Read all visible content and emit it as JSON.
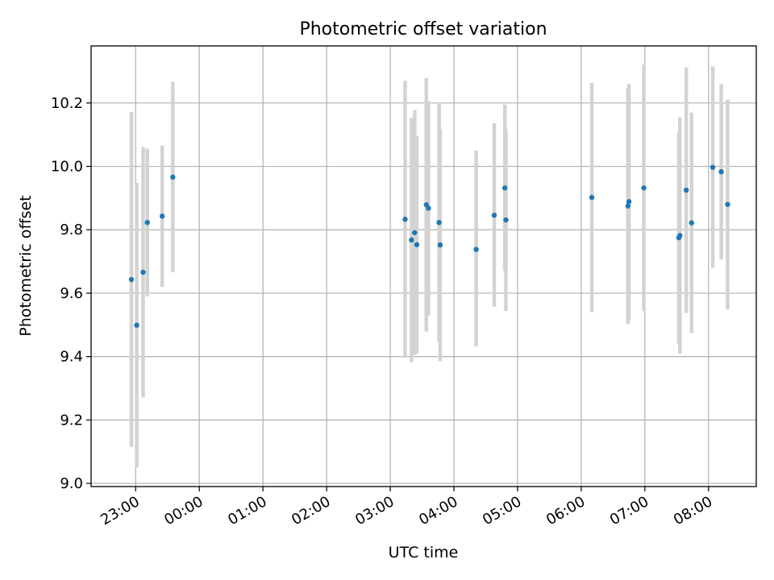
{
  "chart_data": {
    "type": "scatter",
    "title": "Photometric offset variation",
    "xlabel": "UTC time",
    "ylabel": "Photometric offset",
    "x_axis_type": "time",
    "xlim": [
      "2023-01-01T22:18",
      "2023-01-02T08:45"
    ],
    "ylim": [
      8.99,
      10.38
    ],
    "x_ticks": [
      {
        "time": "2023-01-01T23:00",
        "label": "23:00"
      },
      {
        "time": "2023-01-02T00:00",
        "label": "00:00"
      },
      {
        "time": "2023-01-02T01:00",
        "label": "01:00"
      },
      {
        "time": "2023-01-02T02:00",
        "label": "02:00"
      },
      {
        "time": "2023-01-02T03:00",
        "label": "03:00"
      },
      {
        "time": "2023-01-02T04:00",
        "label": "04:00"
      },
      {
        "time": "2023-01-02T05:00",
        "label": "05:00"
      },
      {
        "time": "2023-01-02T06:00",
        "label": "06:00"
      },
      {
        "time": "2023-01-02T07:00",
        "label": "07:00"
      },
      {
        "time": "2023-01-02T08:00",
        "label": "08:00"
      }
    ],
    "y_ticks": [
      {
        "value": 9.0,
        "label": "9.0"
      },
      {
        "value": 9.2,
        "label": "9.2"
      },
      {
        "value": 9.4,
        "label": "9.4"
      },
      {
        "value": 9.6,
        "label": "9.6"
      },
      {
        "value": 9.8,
        "label": "9.8"
      },
      {
        "value": 10.0,
        "label": "10.0"
      },
      {
        "value": 10.2,
        "label": "10.2"
      }
    ],
    "grid": true,
    "point_color": "#1f77b4",
    "errorbar_color": "#d3d3d3",
    "points": [
      {
        "time": "2023-01-01T22:56",
        "y": 9.643,
        "ylow": 9.115,
        "yhigh": 10.172
      },
      {
        "time": "2023-01-01T23:01",
        "y": 9.499,
        "ylow": 9.05,
        "yhigh": 9.948
      },
      {
        "time": "2023-01-01T23:07",
        "y": 9.666,
        "ylow": 9.271,
        "yhigh": 10.061
      },
      {
        "time": "2023-01-01T23:11",
        "y": 9.823,
        "ylow": 9.59,
        "yhigh": 10.056
      },
      {
        "time": "2023-01-01T23:25",
        "y": 9.843,
        "ylow": 9.62,
        "yhigh": 10.066
      },
      {
        "time": "2023-01-01T23:35",
        "y": 9.966,
        "ylow": 9.666,
        "yhigh": 10.267
      },
      {
        "time": "2023-01-02T03:14",
        "y": 9.833,
        "ylow": 9.396,
        "yhigh": 10.27
      },
      {
        "time": "2023-01-02T03:20",
        "y": 9.768,
        "ylow": 9.382,
        "yhigh": 10.153
      },
      {
        "time": "2023-01-02T03:23",
        "y": 9.791,
        "ylow": 9.405,
        "yhigh": 10.178
      },
      {
        "time": "2023-01-02T03:25",
        "y": 9.753,
        "ylow": 9.41,
        "yhigh": 10.096
      },
      {
        "time": "2023-01-02T03:34",
        "y": 9.879,
        "ylow": 9.479,
        "yhigh": 10.279
      },
      {
        "time": "2023-01-02T03:36",
        "y": 9.868,
        "ylow": 9.53,
        "yhigh": 10.206
      },
      {
        "time": "2023-01-02T03:46",
        "y": 9.823,
        "ylow": 9.446,
        "yhigh": 10.201
      },
      {
        "time": "2023-01-02T03:47",
        "y": 9.752,
        "ylow": 9.385,
        "yhigh": 10.118
      },
      {
        "time": "2023-01-02T04:21",
        "y": 9.738,
        "ylow": 9.432,
        "yhigh": 10.05
      },
      {
        "time": "2023-01-02T04:38",
        "y": 9.846,
        "ylow": 9.557,
        "yhigh": 10.136
      },
      {
        "time": "2023-01-02T04:48",
        "y": 9.932,
        "ylow": 9.67,
        "yhigh": 10.195
      },
      {
        "time": "2023-01-02T04:49",
        "y": 9.831,
        "ylow": 9.544,
        "yhigh": 10.118
      },
      {
        "time": "2023-01-02T06:10",
        "y": 9.902,
        "ylow": 9.54,
        "yhigh": 10.263
      },
      {
        "time": "2023-01-02T06:44",
        "y": 9.875,
        "ylow": 9.502,
        "yhigh": 10.248
      },
      {
        "time": "2023-01-02T06:45",
        "y": 9.889,
        "ylow": 9.516,
        "yhigh": 10.261
      },
      {
        "time": "2023-01-02T06:59",
        "y": 9.932,
        "ylow": 9.543,
        "yhigh": 10.321
      },
      {
        "time": "2023-01-02T07:32",
        "y": 9.775,
        "ylow": 9.442,
        "yhigh": 10.108
      },
      {
        "time": "2023-01-02T07:33",
        "y": 9.782,
        "ylow": 9.409,
        "yhigh": 10.155
      },
      {
        "time": "2023-01-02T07:39",
        "y": 9.925,
        "ylow": 9.538,
        "yhigh": 10.312
      },
      {
        "time": "2023-01-02T07:44",
        "y": 9.822,
        "ylow": 9.474,
        "yhigh": 10.17
      },
      {
        "time": "2023-01-02T08:04",
        "y": 9.997,
        "ylow": 9.68,
        "yhigh": 10.315
      },
      {
        "time": "2023-01-02T08:12",
        "y": 9.983,
        "ylow": 9.706,
        "yhigh": 10.26
      },
      {
        "time": "2023-01-02T08:18",
        "y": 9.88,
        "ylow": 9.549,
        "yhigh": 10.211
      }
    ]
  }
}
